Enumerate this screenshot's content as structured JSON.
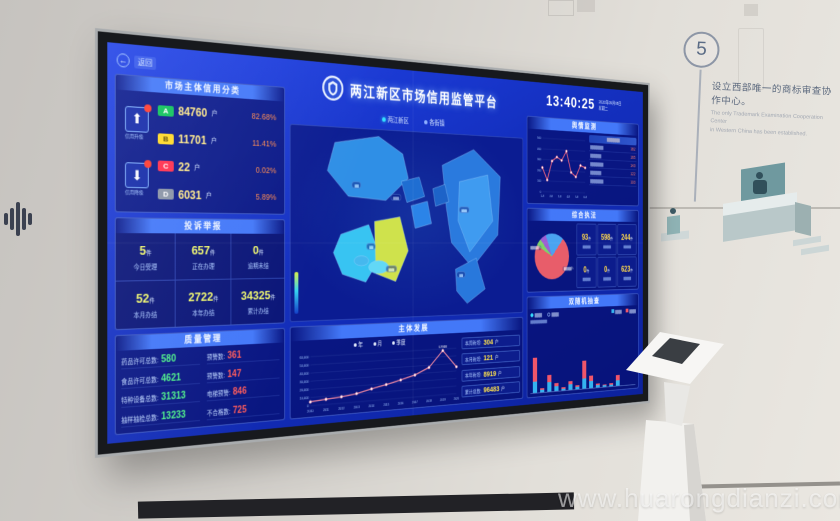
{
  "scene": {
    "watermark": "www.huarongdianzi.com",
    "wall_note": {
      "number": "5",
      "zh": "设立西部唯一的商标审查协作中心。",
      "en_line1": "The only Trademark Examination Cooperation Center",
      "en_line2": "in Western China has been established."
    }
  },
  "colors": {
    "grade_a": "#0fc35c",
    "grade_b": "#ffd928",
    "grade_c": "#ff2f4e",
    "grade_d": "#8a94a6",
    "accent_yellow": "#ffe34d",
    "accent_green": "#4df08a",
    "accent_red": "#ff5b5b",
    "line_pink": "#ff8fa3",
    "bar_blue": "#35b3f0",
    "bar_red": "#f0566a"
  },
  "screen": {
    "back_label": "返回",
    "title": "两江新区市场信用监管平台",
    "clock": {
      "time": "13:40:25",
      "date": "2020年09月08日",
      "weekday": "星期二"
    },
    "tabs": [
      {
        "label": "两江新区",
        "active": true
      },
      {
        "label": "各街镇",
        "active": false
      }
    ],
    "credit_panel": {
      "title": "市场主体信用分类",
      "upgrade_label": "信用升级",
      "downgrade_label": "信用降级",
      "rows": [
        {
          "grade": "A",
          "count": "84760",
          "unit": "户",
          "percent": "82.68%"
        },
        {
          "grade": "B",
          "count": "11701",
          "unit": "户",
          "percent": "11.41%"
        },
        {
          "grade": "C",
          "count": "22",
          "unit": "户",
          "percent": "0.02%"
        },
        {
          "grade": "D",
          "count": "6031",
          "unit": "户",
          "percent": "5.89%"
        }
      ]
    },
    "complaints_panel": {
      "title": "投诉举报",
      "cells": [
        {
          "value": "5",
          "unit": "件",
          "label": "今日受理"
        },
        {
          "value": "657",
          "unit": "件",
          "label": "正在办理"
        },
        {
          "value": "0",
          "unit": "件",
          "label": "逾期未结"
        },
        {
          "value": "52",
          "unit": "件",
          "label": "本月办结"
        },
        {
          "value": "2722",
          "unit": "件",
          "label": "本年办结"
        },
        {
          "value": "34325",
          "unit": "件",
          "label": "累计办结"
        }
      ]
    },
    "quality_panel": {
      "title": "质量管理",
      "left_rows": [
        {
          "label": "药品许可总数:",
          "value": "580"
        },
        {
          "label": "食品许可总数:",
          "value": "4621"
        },
        {
          "label": "特种设备总数:",
          "value": "31313"
        },
        {
          "label": "抽样抽检总数:",
          "value": "13233"
        }
      ],
      "right_rows": [
        {
          "label": "预警数:",
          "value": "361"
        },
        {
          "label": "预警数:",
          "value": "147"
        },
        {
          "label": "电梯预警:",
          "value": "846"
        },
        {
          "label": "不合格数:",
          "value": "725"
        }
      ]
    },
    "map": {
      "region_labels": [
        "▆▆▆",
        "▆▆",
        "▆▆▆",
        "▆▆",
        "▆▆▆",
        "▆▆"
      ]
    },
    "development_panel": {
      "title": "主体发展",
      "legend": [
        "年",
        "月",
        "季度"
      ],
      "chart_data": {
        "type": "line",
        "x": [
          "2010",
          "2011",
          "2012",
          "2013",
          "2014",
          "2015",
          "2016",
          "2017",
          "2018",
          "2019",
          "2020"
        ],
        "values": [
          4800,
          6500,
          8000,
          10500,
          15000,
          19000,
          23500,
          28500,
          37000,
          57938,
          35500
        ],
        "ymax": 60000,
        "yticks": [
          "60,000",
          "50,000",
          "40,000",
          "30,000",
          "20,000",
          "10,000",
          "0"
        ],
        "peak_label": "57938",
        "peak_index": 9
      },
      "stats": [
        {
          "label": "本周新增:",
          "value": "304",
          "unit": "户"
        },
        {
          "label": "本月新增:",
          "value": "121",
          "unit": "户"
        },
        {
          "label": "本年新增:",
          "value": "8919",
          "unit": "户"
        },
        {
          "label": "累计总数:",
          "value": "96483",
          "unit": "户"
        }
      ]
    },
    "sentiment_panel": {
      "title": "舆情监测",
      "chart_data": {
        "type": "line",
        "x": [
          "1-8",
          "2-8",
          "3-8",
          "4-8",
          "5-8",
          "6-8"
        ],
        "values": [
          45,
          22,
          58,
          66,
          60,
          78,
          38,
          30,
          52,
          48
        ],
        "ymax": 100,
        "yticks": [
          "500",
          "400",
          "300",
          "200",
          "100",
          "0"
        ]
      },
      "list_header": "▆▆▆▆▆▆",
      "list_rows": [
        {
          "text": "▆▆▆▆▆▆",
          "value": "182"
        },
        {
          "text": "▆▆▆▆▆",
          "value": "165"
        },
        {
          "text": "▆▆▆▆▆▆",
          "value": "143"
        },
        {
          "text": "▆▆▆▆▆",
          "value": "122"
        },
        {
          "text": "▆▆▆▆▆▆",
          "value": "103"
        }
      ]
    },
    "enforcement_panel": {
      "title": "综合执法",
      "chart_data": {
        "type": "pie",
        "slices": [
          {
            "label": "▆▆",
            "value": 72,
            "color": "#e85d6a"
          },
          {
            "label": "▆▆",
            "value": 5,
            "color": "#7ed36a"
          },
          {
            "label": "▆▆",
            "value": 6,
            "color": "#9c5fd4"
          },
          {
            "label": "▆▆",
            "value": 17,
            "color": "#4aa3f0"
          }
        ]
      },
      "pie_label_left": "▆▆ ▆▆%",
      "pie_label_right": "▆▆ ▆▆%",
      "stats": [
        {
          "value": "93",
          "unit": "件",
          "label": "▆▆▆▆"
        },
        {
          "value": "598",
          "unit": "件",
          "label": "▆▆▆▆"
        },
        {
          "value": "244",
          "unit": "件",
          "label": "▆▆▆▆"
        },
        {
          "value": "0",
          "unit": "件",
          "label": "▆▆▆▆"
        },
        {
          "value": "0",
          "unit": "件",
          "label": "▆▆▆▆"
        },
        {
          "value": "623",
          "unit": "件",
          "label": "▆▆▆▆"
        }
      ]
    },
    "random_check_panel": {
      "title": "双随机抽查",
      "toggles": [
        "▆▆▆",
        "▆▆▆"
      ],
      "note": "▆▆▆▆▆▆▆▆▆",
      "chart_data": {
        "type": "stacked-bar",
        "ymax": 100,
        "series": [
          {
            "name": "▆▆▆",
            "color": "#35b3f0",
            "values": [
              30,
              6,
              24,
              12,
              5,
              14,
              6,
              28,
              18,
              6,
              4,
              5,
              14
            ]
          },
          {
            "name": "▆▆▆",
            "color": "#f0566a",
            "values": [
              62,
              5,
              20,
              8,
              3,
              8,
              5,
              48,
              16,
              5,
              3,
              4,
              16
            ]
          }
        ]
      }
    }
  }
}
